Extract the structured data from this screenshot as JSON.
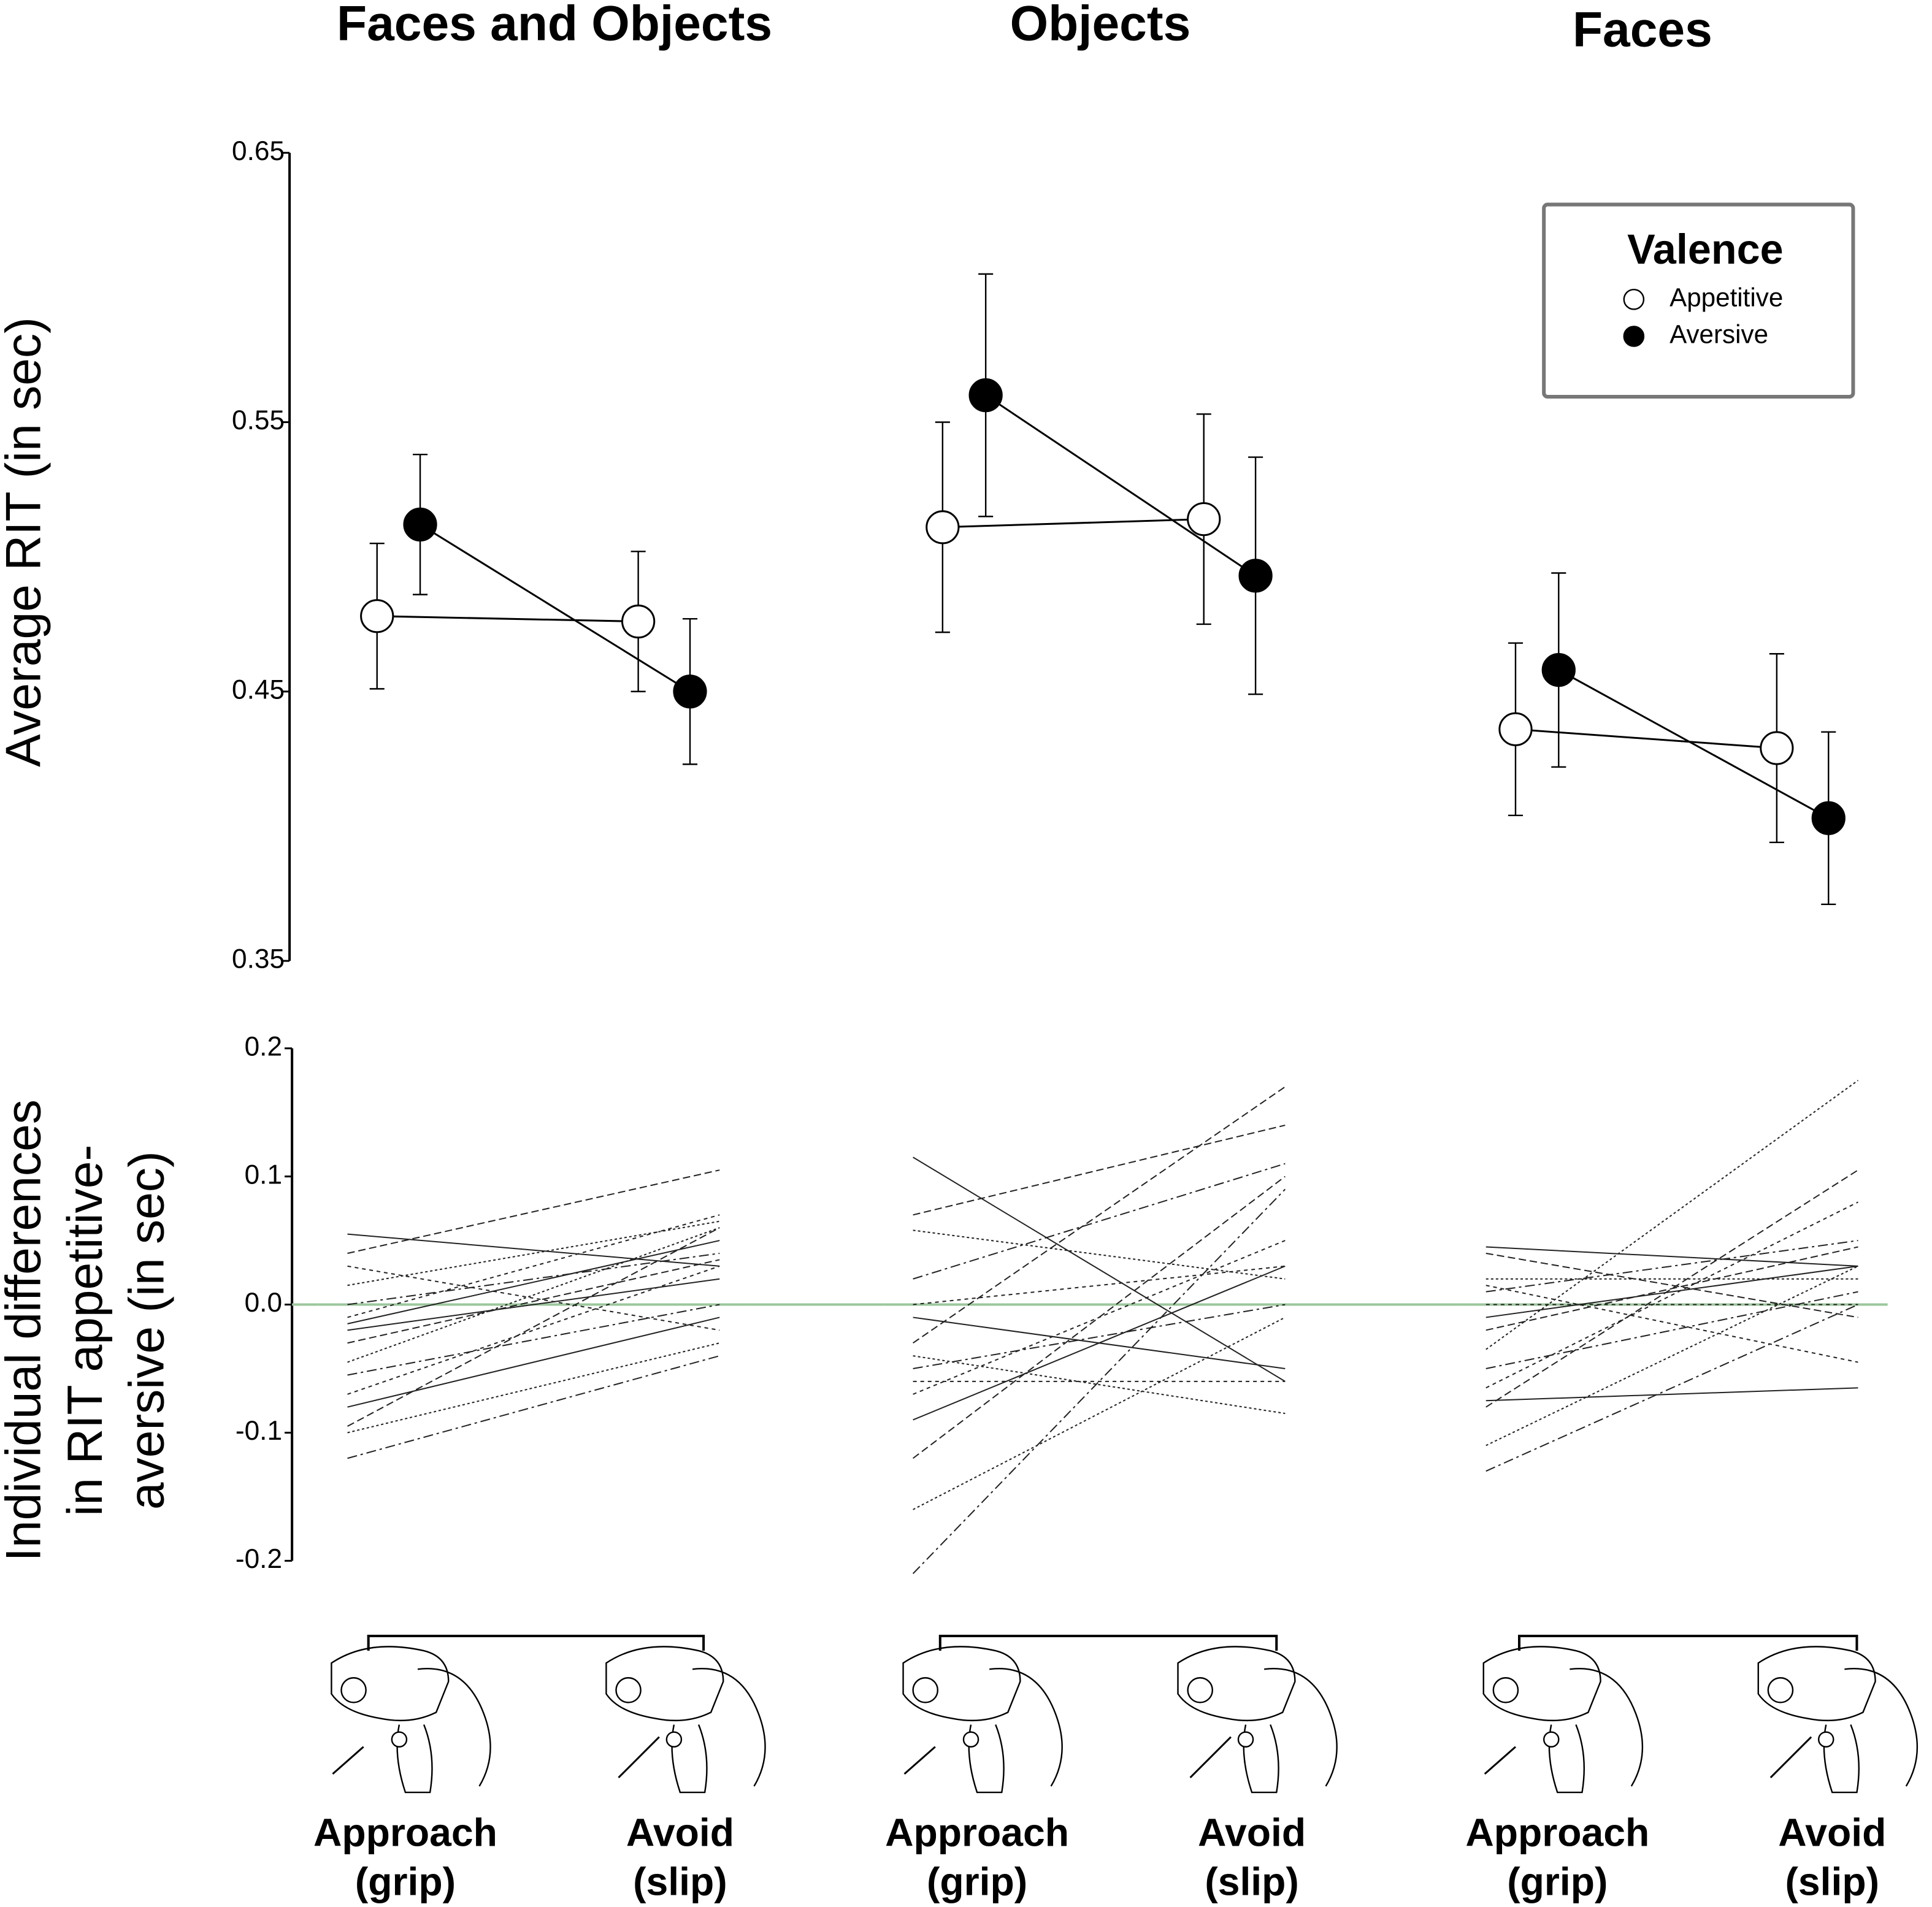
{
  "chart_data": [
    {
      "type": "errorbar-line",
      "ylabel": "Average RIT (in sec)",
      "ylim": [
        0.35,
        0.65
      ],
      "yticks": [
        0.35,
        0.45,
        0.55,
        0.65
      ],
      "legend": {
        "title": "Valence",
        "position": "upper right"
      },
      "series": [
        {
          "name": "Appetitive",
          "color": "#ffffff"
        },
        {
          "name": "Aversive",
          "color": "#000000"
        }
      ],
      "panels": [
        {
          "title": "Faces and Objects",
          "values": [
            [
              0.478,
              0.476
            ],
            [
              0.512,
              0.45
            ]
          ],
          "errors": [
            [
              0.027,
              0.026
            ],
            [
              0.026,
              0.027
            ]
          ]
        },
        {
          "title": "Objects",
          "values": [
            [
              0.511,
              0.514
            ],
            [
              0.56,
              0.493
            ]
          ],
          "errors": [
            [
              0.039,
              0.039
            ],
            [
              0.045,
              0.044
            ]
          ]
        },
        {
          "title": "Faces",
          "values": [
            [
              0.436,
              0.429
            ],
            [
              0.458,
              0.403
            ]
          ],
          "errors": [
            [
              0.032,
              0.035
            ],
            [
              0.036,
              0.032
            ]
          ]
        }
      ]
    },
    {
      "type": "line",
      "ylabel": [
        "Individual differences",
        "in RIT appetitive-",
        "aversive (in sec)"
      ],
      "ylim": [
        -0.2,
        0.2
      ],
      "yticks": [
        -0.2,
        -0.1,
        {
          "value": 0,
          "label": "0.0"
        },
        0.1,
        0.2
      ],
      "hline": 0,
      "hline_color": "#9cc79c",
      "categories": [
        "Approach",
        "Avoid"
      ],
      "category_notes": [
        "(grip)",
        "(slip)"
      ],
      "panels": [
        {
          "lines": [
            [
              0.055,
              0.03
            ],
            [
              0.04,
              0.105
            ],
            [
              0.015,
              0.065
            ],
            [
              0.0,
              0.04
            ],
            [
              -0.01,
              0.07
            ],
            [
              -0.02,
              0.02
            ],
            [
              -0.03,
              0.035
            ],
            [
              -0.045,
              0.06
            ],
            [
              -0.055,
              0.0
            ],
            [
              -0.07,
              0.03
            ],
            [
              -0.08,
              -0.01
            ],
            [
              -0.095,
              0.06
            ],
            [
              -0.1,
              -0.03
            ],
            [
              -0.12,
              -0.04
            ],
            [
              0.03,
              -0.02
            ],
            [
              -0.015,
              0.05
            ]
          ]
        },
        {
          "lines": [
            [
              0.115,
              -0.06
            ],
            [
              0.07,
              0.14
            ],
            [
              0.058,
              0.02
            ],
            [
              0.02,
              0.11
            ],
            [
              0.0,
              0.03
            ],
            [
              -0.01,
              -0.05
            ],
            [
              -0.03,
              0.17
            ],
            [
              -0.04,
              -0.085
            ],
            [
              -0.05,
              0.0
            ],
            [
              -0.07,
              0.05
            ],
            [
              -0.09,
              0.03
            ],
            [
              -0.12,
              0.1
            ],
            [
              -0.16,
              -0.01
            ],
            [
              -0.21,
              0.09
            ],
            [
              -0.06,
              -0.06
            ]
          ]
        },
        {
          "lines": [
            [
              0.045,
              0.03
            ],
            [
              0.04,
              -0.01
            ],
            [
              0.02,
              0.02
            ],
            [
              0.01,
              0.05
            ],
            [
              0.0,
              0.0
            ],
            [
              -0.01,
              0.03
            ],
            [
              -0.02,
              0.045
            ],
            [
              -0.035,
              0.175
            ],
            [
              -0.05,
              0.01
            ],
            [
              -0.065,
              0.08
            ],
            [
              -0.075,
              -0.065
            ],
            [
              -0.08,
              0.105
            ],
            [
              -0.11,
              0.03
            ],
            [
              -0.13,
              0.0
            ],
            [
              0.015,
              -0.045
            ]
          ]
        }
      ]
    }
  ]
}
